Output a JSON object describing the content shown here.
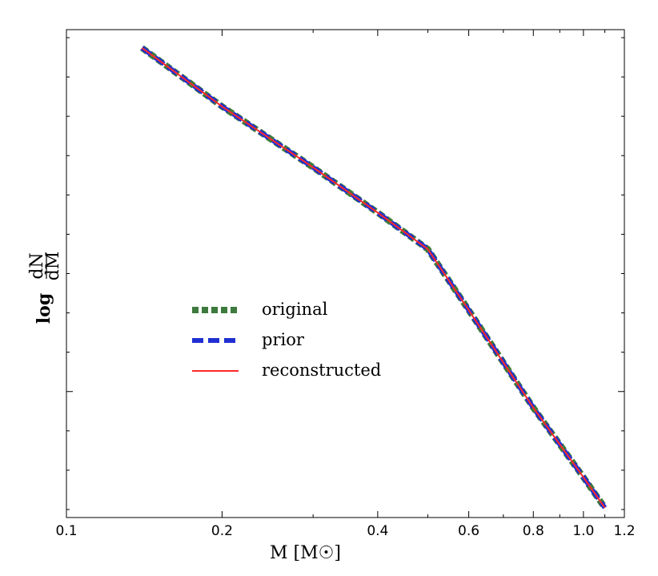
{
  "chart_data": {
    "type": "line",
    "xscale": "log",
    "xlim": [
      0.1,
      1.2
    ],
    "ylim": [
      -3.0,
      1.0
    ],
    "xticks": [
      {
        "value": 0.1,
        "label": "0.1"
      },
      {
        "value": 0.2,
        "label": "0.2"
      },
      {
        "value": 0.4,
        "label": "0.4"
      },
      {
        "value": 0.6,
        "label": "0.6"
      },
      {
        "value": 0.8,
        "label": "0.8"
      },
      {
        "value": 1.0,
        "label": "1.0"
      },
      {
        "value": 1.2,
        "label": "1.2"
      }
    ],
    "y_tick_count": 13,
    "xlabel": "M [M☉]",
    "ylabel": "log dN/dM",
    "ylabel_parts": {
      "prefix": "log",
      "numerator": "dN",
      "denominator": "dM"
    },
    "series": [
      {
        "name": "original",
        "style": "dotted",
        "color": "#3d7a3d",
        "x": [
          0.14,
          0.2,
          0.3,
          0.4,
          0.5,
          0.6,
          0.8,
          1.0,
          1.1
        ],
        "y": [
          0.85,
          0.37,
          -0.13,
          -0.5,
          -0.8,
          -1.3,
          -2.1,
          -2.67,
          -2.92
        ]
      },
      {
        "name": "prior",
        "style": "dashed",
        "color": "#1f2fd1",
        "x": [
          0.14,
          0.2,
          0.3,
          0.4,
          0.5,
          0.6,
          0.8,
          1.0,
          1.1
        ],
        "y": [
          0.85,
          0.37,
          -0.13,
          -0.5,
          -0.8,
          -1.3,
          -2.1,
          -2.67,
          -2.92
        ]
      },
      {
        "name": "reconstructed",
        "style": "solid",
        "color": "#ff2a2a",
        "x": [
          0.14,
          0.2,
          0.3,
          0.4,
          0.5,
          0.6,
          0.8,
          1.0,
          1.1
        ],
        "y": [
          0.85,
          0.37,
          -0.13,
          -0.5,
          -0.8,
          -1.3,
          -2.1,
          -2.67,
          -2.92
        ]
      }
    ],
    "legend": {
      "location": "center-left",
      "entries": [
        "original",
        "prior",
        "reconstructed"
      ]
    },
    "grid": false
  }
}
